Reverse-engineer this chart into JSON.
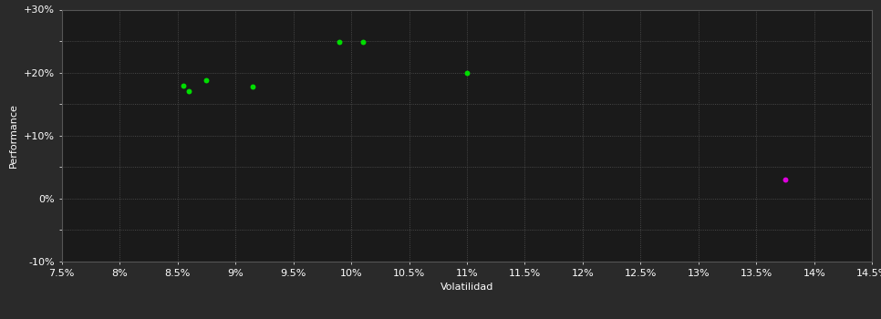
{
  "background_color": "#2a2a2a",
  "plot_bg_color": "#1a1a1a",
  "grid_color": "#555555",
  "text_color": "#ffffff",
  "xlabel": "Volatilidad",
  "ylabel": "Performance",
  "xlim": [
    0.075,
    0.145
  ],
  "ylim": [
    -0.1,
    0.3
  ],
  "xticks": [
    0.075,
    0.08,
    0.085,
    0.09,
    0.095,
    0.1,
    0.105,
    0.11,
    0.115,
    0.12,
    0.125,
    0.13,
    0.135,
    0.14,
    0.145
  ],
  "yticks": [
    -0.1,
    -0.05,
    0.0,
    0.05,
    0.1,
    0.15,
    0.2,
    0.25,
    0.3
  ],
  "ytick_labels": [
    "-10%",
    "",
    "0%",
    "",
    "+10%",
    "",
    "+20%",
    "",
    "+30%"
  ],
  "xtick_labels": [
    "7.5%",
    "8%",
    "8.5%",
    "9%",
    "9.5%",
    "10%",
    "10.5%",
    "11%",
    "11.5%",
    "12%",
    "12.5%",
    "13%",
    "13.5%",
    "14%",
    "14.5%"
  ],
  "green_points": [
    [
      0.0855,
      0.179
    ],
    [
      0.086,
      0.17
    ],
    [
      0.0875,
      0.188
    ],
    [
      0.0915,
      0.178
    ],
    [
      0.099,
      0.248
    ],
    [
      0.101,
      0.248
    ],
    [
      0.11,
      0.199
    ]
  ],
  "magenta_points": [
    [
      0.1375,
      0.03
    ]
  ],
  "green_color": "#00dd00",
  "magenta_color": "#dd00dd",
  "marker_size": 18,
  "axis_fontsize": 8,
  "tick_fontsize": 8
}
